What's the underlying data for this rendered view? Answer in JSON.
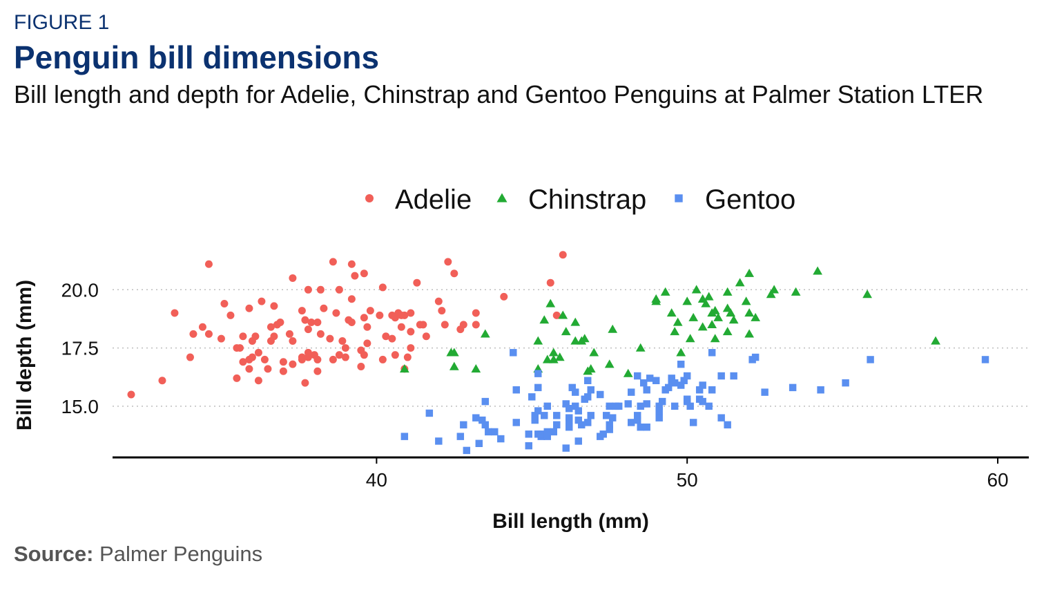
{
  "header": {
    "figure_label": "FIGURE 1",
    "title": "Penguin bill dimensions",
    "subtitle": "Bill length and depth for Adelie, Chinstrap and Gentoo Penguins at Palmer Station LTER"
  },
  "footer": {
    "source_label": "Source:",
    "source_text": "Palmer Penguins"
  },
  "chart_data": {
    "type": "scatter",
    "xlabel": "Bill length (mm)",
    "ylabel": "Bill depth (mm)",
    "xlim": [
      31.5,
      61.0
    ],
    "ylim": [
      12.8,
      21.7
    ],
    "xticks": [
      40,
      50,
      60
    ],
    "xtick_labels": [
      "40",
      "50",
      "60"
    ],
    "yticks": [
      15.0,
      17.5,
      20.0
    ],
    "ytick_labels": [
      "15.0",
      "17.5",
      "20.0"
    ],
    "grid": "horizontal dotted at y ticks",
    "legend_position": "top",
    "series": [
      {
        "name": "Adelie",
        "marker": "circle",
        "color": "#f15f58",
        "points": [
          [
            32.1,
            15.5
          ],
          [
            33.1,
            16.1
          ],
          [
            33.5,
            19.0
          ],
          [
            34.0,
            17.1
          ],
          [
            34.1,
            18.1
          ],
          [
            34.4,
            18.4
          ],
          [
            34.6,
            18.1
          ],
          [
            34.6,
            21.1
          ],
          [
            35.0,
            17.9
          ],
          [
            35.1,
            19.4
          ],
          [
            35.3,
            18.9
          ],
          [
            35.5,
            16.2
          ],
          [
            35.5,
            17.5
          ],
          [
            35.6,
            17.5
          ],
          [
            35.7,
            16.9
          ],
          [
            35.7,
            18.0
          ],
          [
            35.9,
            16.6
          ],
          [
            35.9,
            17.0
          ],
          [
            35.9,
            19.2
          ],
          [
            36.0,
            17.1
          ],
          [
            36.0,
            17.8
          ],
          [
            36.1,
            18.0
          ],
          [
            36.2,
            16.1
          ],
          [
            36.2,
            17.3
          ],
          [
            36.3,
            19.5
          ],
          [
            36.4,
            17.0
          ],
          [
            36.5,
            16.6
          ],
          [
            36.6,
            17.8
          ],
          [
            36.7,
            18.0
          ],
          [
            36.7,
            19.3
          ],
          [
            36.8,
            18.5
          ],
          [
            36.9,
            18.6
          ],
          [
            37.0,
            16.5
          ],
          [
            37.0,
            16.9
          ],
          [
            37.2,
            18.1
          ],
          [
            37.3,
            16.8
          ],
          [
            37.3,
            17.8
          ],
          [
            37.3,
            20.5
          ],
          [
            37.6,
            17.0
          ],
          [
            37.6,
            17.1
          ],
          [
            37.6,
            19.1
          ],
          [
            37.7,
            16.0
          ],
          [
            37.7,
            18.7
          ],
          [
            37.8,
            17.1
          ],
          [
            37.8,
            18.3
          ],
          [
            37.8,
            20.0
          ],
          [
            37.9,
            18.6
          ],
          [
            38.1,
            16.5
          ],
          [
            38.1,
            17.0
          ],
          [
            38.1,
            18.6
          ],
          [
            38.2,
            18.1
          ],
          [
            38.2,
            20.0
          ],
          [
            38.3,
            19.2
          ],
          [
            38.5,
            17.9
          ],
          [
            38.6,
            17.0
          ],
          [
            38.6,
            21.2
          ],
          [
            38.7,
            19.0
          ],
          [
            38.8,
            17.2
          ],
          [
            38.8,
            20.0
          ],
          [
            38.9,
            17.8
          ],
          [
            39.0,
            17.1
          ],
          [
            39.0,
            17.5
          ],
          [
            39.1,
            18.7
          ],
          [
            39.2,
            18.6
          ],
          [
            39.2,
            19.6
          ],
          [
            39.2,
            21.1
          ],
          [
            39.3,
            20.6
          ],
          [
            39.5,
            16.7
          ],
          [
            39.5,
            17.4
          ],
          [
            39.6,
            17.2
          ],
          [
            39.6,
            18.8
          ],
          [
            39.7,
            17.7
          ],
          [
            39.7,
            18.4
          ],
          [
            39.8,
            19.1
          ],
          [
            40.1,
            18.9
          ],
          [
            40.2,
            17.0
          ],
          [
            40.2,
            20.1
          ],
          [
            40.3,
            18.0
          ],
          [
            40.5,
            17.9
          ],
          [
            40.5,
            18.9
          ],
          [
            40.6,
            17.2
          ],
          [
            40.6,
            18.8
          ],
          [
            40.7,
            19.0
          ],
          [
            40.8,
            18.4
          ],
          [
            40.9,
            16.6
          ],
          [
            40.9,
            18.9
          ],
          [
            41.0,
            17.1
          ],
          [
            41.1,
            17.5
          ],
          [
            41.1,
            18.2
          ],
          [
            41.1,
            19.0
          ],
          [
            41.3,
            20.3
          ],
          [
            41.4,
            18.5
          ],
          [
            41.5,
            18.5
          ],
          [
            41.6,
            18.0
          ],
          [
            42.0,
            19.5
          ],
          [
            42.1,
            19.1
          ],
          [
            42.2,
            18.5
          ],
          [
            42.3,
            21.2
          ],
          [
            42.5,
            20.7
          ],
          [
            42.7,
            18.3
          ],
          [
            42.8,
            18.5
          ],
          [
            43.2,
            19.0
          ],
          [
            43.2,
            18.5
          ],
          [
            44.1,
            19.7
          ],
          [
            45.6,
            20.3
          ],
          [
            45.8,
            18.9
          ],
          [
            46.0,
            21.5
          ],
          [
            40.8,
            18.9
          ],
          [
            37.8,
            17.3
          ],
          [
            36.6,
            18.4
          ],
          [
            39.6,
            20.7
          ],
          [
            38.0,
            17.2
          ]
        ]
      },
      {
        "name": "Chinstrap",
        "marker": "triangle",
        "color": "#22aa33",
        "points": [
          [
            40.9,
            16.6
          ],
          [
            42.4,
            17.3
          ],
          [
            42.5,
            16.7
          ],
          [
            42.5,
            17.3
          ],
          [
            43.2,
            16.6
          ],
          [
            43.5,
            18.1
          ],
          [
            45.2,
            16.6
          ],
          [
            45.2,
            17.8
          ],
          [
            45.4,
            18.7
          ],
          [
            45.5,
            17.0
          ],
          [
            45.6,
            19.4
          ],
          [
            45.7,
            17.0
          ],
          [
            45.7,
            17.3
          ],
          [
            45.9,
            17.1
          ],
          [
            46.0,
            18.9
          ],
          [
            46.1,
            18.2
          ],
          [
            46.4,
            17.8
          ],
          [
            46.4,
            18.6
          ],
          [
            46.6,
            17.8
          ],
          [
            46.7,
            17.9
          ],
          [
            46.8,
            16.5
          ],
          [
            46.9,
            16.6
          ],
          [
            47.0,
            17.3
          ],
          [
            47.5,
            16.8
          ],
          [
            47.6,
            18.3
          ],
          [
            48.1,
            16.4
          ],
          [
            48.5,
            17.5
          ],
          [
            49.0,
            19.5
          ],
          [
            49.0,
            19.6
          ],
          [
            49.3,
            19.9
          ],
          [
            49.5,
            19.0
          ],
          [
            49.6,
            18.2
          ],
          [
            49.7,
            18.6
          ],
          [
            49.8,
            17.3
          ],
          [
            50.0,
            19.5
          ],
          [
            50.1,
            17.9
          ],
          [
            50.2,
            18.8
          ],
          [
            50.3,
            20.0
          ],
          [
            50.5,
            18.4
          ],
          [
            50.5,
            19.6
          ],
          [
            50.6,
            19.4
          ],
          [
            50.7,
            19.7
          ],
          [
            50.8,
            18.5
          ],
          [
            50.8,
            19.0
          ],
          [
            50.9,
            17.9
          ],
          [
            50.9,
            19.1
          ],
          [
            51.0,
            18.8
          ],
          [
            51.3,
            18.2
          ],
          [
            51.3,
            19.2
          ],
          [
            51.3,
            19.9
          ],
          [
            51.4,
            19.0
          ],
          [
            51.5,
            18.7
          ],
          [
            51.7,
            20.3
          ],
          [
            51.9,
            19.5
          ],
          [
            52.0,
            18.1
          ],
          [
            52.0,
            19.0
          ],
          [
            52.0,
            20.7
          ],
          [
            52.2,
            18.8
          ],
          [
            52.7,
            19.8
          ],
          [
            52.8,
            20.0
          ],
          [
            53.5,
            19.9
          ],
          [
            54.2,
            20.8
          ],
          [
            55.8,
            19.8
          ],
          [
            58.0,
            17.8
          ]
        ]
      },
      {
        "name": "Gentoo",
        "marker": "square",
        "color": "#5a8ff0",
        "points": [
          [
            40.9,
            13.7
          ],
          [
            41.7,
            14.7
          ],
          [
            42.0,
            13.5
          ],
          [
            42.7,
            13.7
          ],
          [
            42.8,
            14.2
          ],
          [
            42.9,
            13.1
          ],
          [
            43.2,
            14.5
          ],
          [
            43.3,
            13.4
          ],
          [
            43.4,
            14.4
          ],
          [
            43.5,
            14.2
          ],
          [
            43.5,
            15.2
          ],
          [
            43.6,
            13.9
          ],
          [
            43.8,
            13.9
          ],
          [
            44.4,
            17.3
          ],
          [
            44.5,
            14.3
          ],
          [
            44.5,
            15.7
          ],
          [
            44.9,
            13.3
          ],
          [
            44.9,
            13.8
          ],
          [
            45.0,
            15.4
          ],
          [
            45.1,
            14.4
          ],
          [
            45.1,
            14.5
          ],
          [
            45.2,
            13.8
          ],
          [
            45.2,
            14.8
          ],
          [
            45.2,
            15.8
          ],
          [
            45.2,
            16.4
          ],
          [
            45.3,
            13.7
          ],
          [
            45.3,
            13.8
          ],
          [
            45.4,
            14.6
          ],
          [
            45.5,
            13.7
          ],
          [
            45.5,
            13.9
          ],
          [
            45.5,
            15.0
          ],
          [
            45.7,
            13.9
          ],
          [
            45.8,
            14.2
          ],
          [
            45.8,
            14.6
          ],
          [
            46.1,
            13.2
          ],
          [
            46.1,
            15.1
          ],
          [
            46.2,
            14.1
          ],
          [
            46.2,
            14.4
          ],
          [
            46.2,
            14.5
          ],
          [
            46.2,
            14.9
          ],
          [
            46.3,
            15.8
          ],
          [
            46.4,
            15.0
          ],
          [
            46.4,
            15.6
          ],
          [
            46.5,
            13.5
          ],
          [
            46.5,
            14.4
          ],
          [
            46.5,
            14.8
          ],
          [
            46.6,
            14.2
          ],
          [
            46.7,
            15.3
          ],
          [
            46.8,
            14.3
          ],
          [
            46.8,
            15.4
          ],
          [
            46.8,
            16.1
          ],
          [
            46.9,
            14.6
          ],
          [
            47.2,
            13.7
          ],
          [
            47.2,
            15.5
          ],
          [
            47.3,
            13.8
          ],
          [
            47.4,
            14.6
          ],
          [
            47.5,
            14.0
          ],
          [
            47.5,
            15.0
          ],
          [
            47.6,
            14.5
          ],
          [
            47.7,
            15.0
          ],
          [
            47.8,
            15.0
          ],
          [
            48.1,
            15.1
          ],
          [
            48.2,
            14.3
          ],
          [
            48.2,
            15.6
          ],
          [
            48.4,
            14.4
          ],
          [
            48.4,
            14.6
          ],
          [
            48.4,
            16.3
          ],
          [
            48.5,
            14.1
          ],
          [
            48.5,
            15.0
          ],
          [
            48.6,
            16.0
          ],
          [
            48.7,
            14.1
          ],
          [
            48.7,
            15.1
          ],
          [
            48.7,
            15.7
          ],
          [
            48.8,
            16.2
          ],
          [
            49.0,
            16.1
          ],
          [
            49.1,
            14.5
          ],
          [
            49.1,
            15.0
          ],
          [
            49.2,
            15.2
          ],
          [
            49.3,
            15.7
          ],
          [
            49.4,
            15.8
          ],
          [
            49.5,
            16.1
          ],
          [
            49.5,
            16.2
          ],
          [
            49.6,
            15.0
          ],
          [
            49.6,
            16.0
          ],
          [
            49.8,
            15.9
          ],
          [
            49.8,
            16.8
          ],
          [
            49.9,
            16.1
          ],
          [
            50.0,
            15.2
          ],
          [
            50.0,
            15.3
          ],
          [
            50.0,
            16.3
          ],
          [
            50.1,
            15.0
          ],
          [
            50.2,
            14.3
          ],
          [
            50.4,
            15.3
          ],
          [
            50.4,
            15.7
          ],
          [
            50.5,
            15.2
          ],
          [
            50.5,
            15.9
          ],
          [
            50.7,
            15.0
          ],
          [
            50.8,
            15.7
          ],
          [
            50.8,
            17.3
          ],
          [
            51.1,
            14.5
          ],
          [
            51.1,
            16.3
          ],
          [
            51.3,
            14.2
          ],
          [
            51.5,
            16.3
          ],
          [
            52.1,
            17.0
          ],
          [
            52.2,
            17.1
          ],
          [
            52.5,
            15.6
          ],
          [
            53.4,
            15.8
          ],
          [
            54.3,
            15.7
          ],
          [
            55.1,
            16.0
          ],
          [
            55.9,
            17.0
          ],
          [
            59.6,
            17.0
          ],
          [
            45.1,
            14.6
          ],
          [
            44.0,
            13.6
          ],
          [
            46.9,
            15.7
          ],
          [
            47.5,
            14.2
          ],
          [
            49.1,
            14.8
          ]
        ]
      }
    ]
  }
}
